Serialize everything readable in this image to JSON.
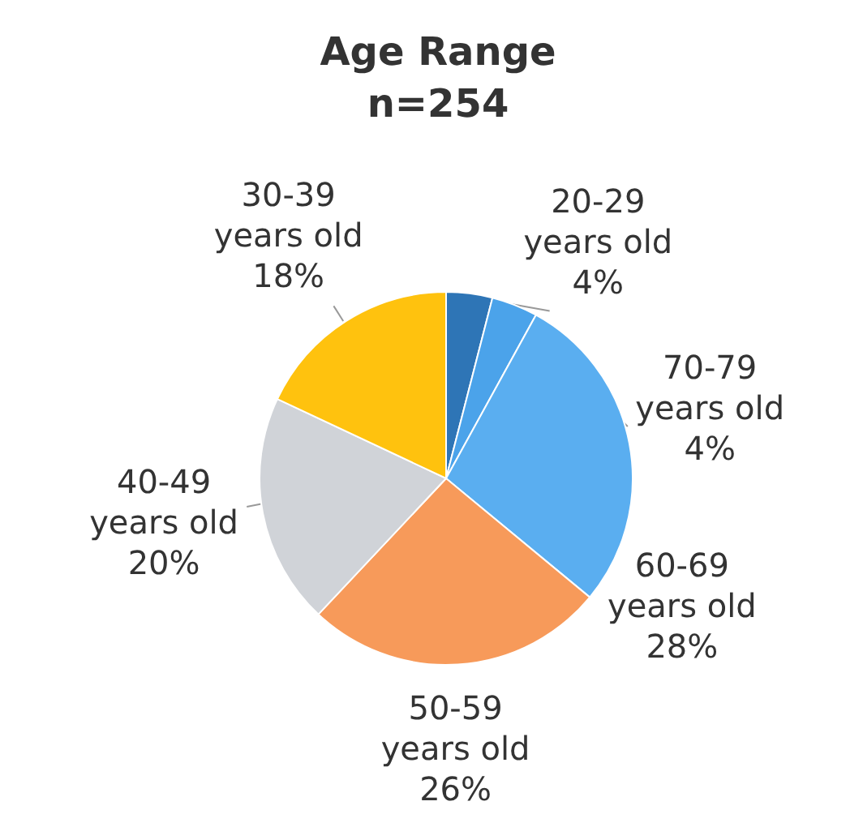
{
  "chart_data": {
    "type": "pie",
    "title": "Age Range",
    "subtitle": "n=254",
    "categories": [
      "20-29 years old",
      "70-79 years old",
      "60-69 years old",
      "50-59 years old",
      "40-49 years old",
      "30-39 years old"
    ],
    "values": [
      4,
      4,
      28,
      26,
      20,
      18
    ],
    "value_labels": [
      "4%",
      "4%",
      "28%",
      "26%",
      "20%",
      "18%"
    ],
    "colors": [
      "#2e75b6",
      "#4ba3ea",
      "#5aaef0",
      "#f79a5a",
      "#d0d3d8",
      "#ffc20e"
    ]
  }
}
